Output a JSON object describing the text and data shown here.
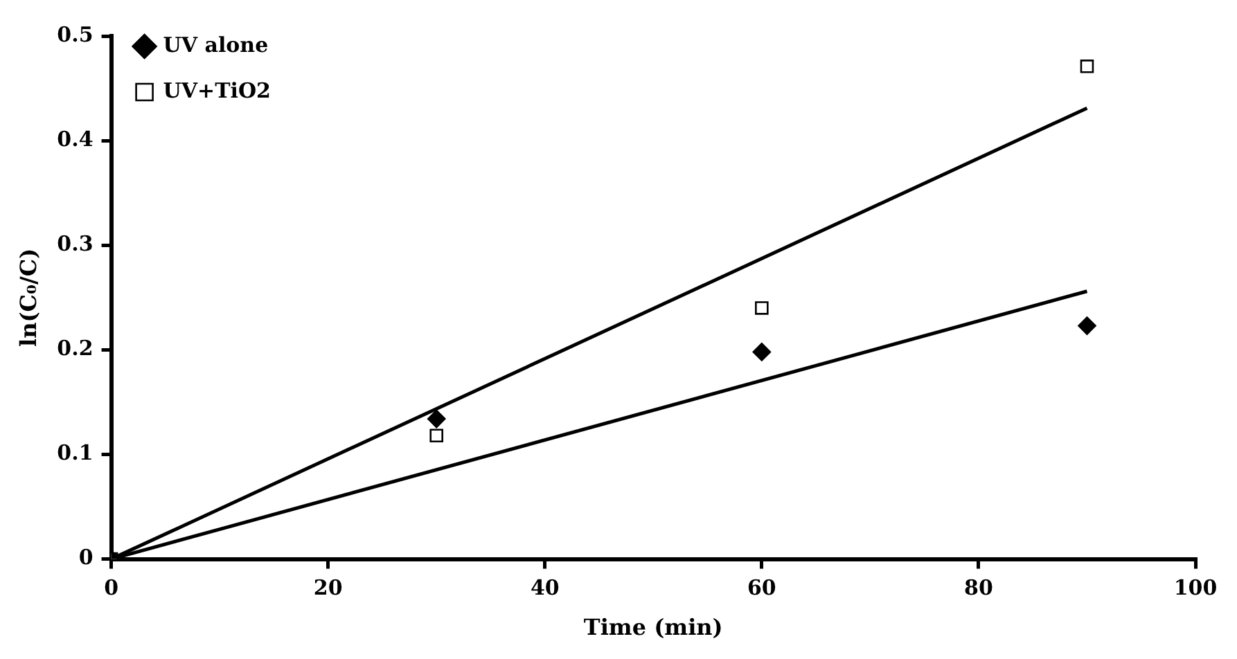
{
  "chart_data": {
    "type": "scatter",
    "xlabel": "Time (min)",
    "ylabel": "ln(C₀/C)",
    "xlim": [
      0,
      100
    ],
    "xticks": [
      0,
      20,
      40,
      60,
      80,
      100
    ],
    "ylim": [
      0,
      0.5
    ],
    "yticks": [
      0,
      0.1,
      0.2,
      0.3,
      0.4,
      0.5
    ],
    "grid": false,
    "legend": "top left",
    "series": [
      {
        "name": "UV alone",
        "color": "#000000",
        "marker": "diamond",
        "x": [
          0,
          30,
          60,
          90
        ],
        "values": [
          0,
          0.134,
          0.198,
          0.223
        ]
      },
      {
        "name": "UV+TiO2",
        "color": "#000000",
        "marker": "square",
        "x": [
          0,
          30,
          60,
          90
        ],
        "values": [
          0,
          0.118,
          0.24,
          0.471
        ]
      },
      {
        "type": "line",
        "color": "#000000",
        "marker": "none",
        "line_style": "solid",
        "x": [
          0,
          90
        ],
        "values": [
          0,
          0.431
        ]
      },
      {
        "type": "line",
        "color": "#000000",
        "marker": "none",
        "line_style": "solid",
        "x": [
          0,
          90
        ],
        "values": [
          0,
          0.256
        ]
      }
    ]
  }
}
